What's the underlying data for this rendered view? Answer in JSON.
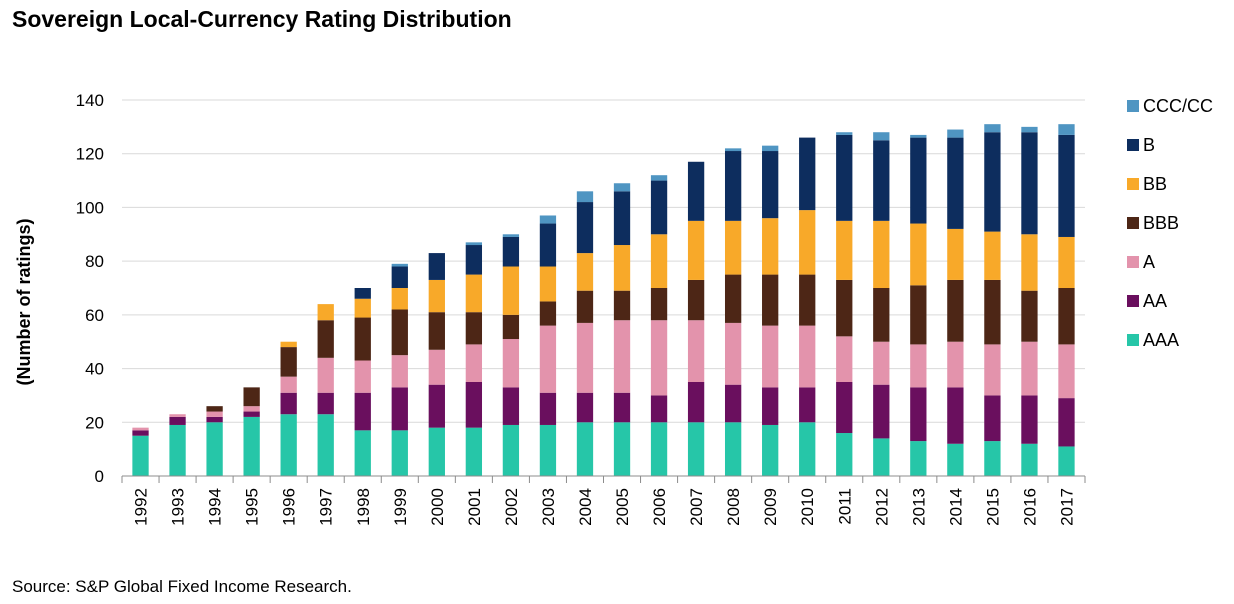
{
  "title": "Sovereign Local-Currency Rating Distribution",
  "source": "Source: S&P Global Fixed Income Research.",
  "chart_data": {
    "type": "bar",
    "stacked": true,
    "categories": [
      "1992",
      "1993",
      "1994",
      "1995",
      "1996",
      "1997",
      "1998",
      "1999",
      "2000",
      "2001",
      "2002",
      "2003",
      "2004",
      "2005",
      "2006",
      "2007",
      "2008",
      "2009",
      "2010",
      "2011",
      "2012",
      "2013",
      "2014",
      "2015",
      "2016",
      "2017"
    ],
    "ylabel": "(Number of ratings)",
    "ylim": [
      0,
      140
    ],
    "yticks": [
      0,
      20,
      40,
      60,
      80,
      100,
      120,
      140
    ],
    "grid": true,
    "legend_position": "right",
    "series": [
      {
        "name": "AAA",
        "color": "#26c6a8",
        "values": [
          15,
          19,
          20,
          22,
          23,
          23,
          17,
          17,
          18,
          18,
          19,
          19,
          20,
          20,
          20,
          20,
          20,
          19,
          20,
          16,
          14,
          13,
          12,
          13,
          12,
          11
        ]
      },
      {
        "name": "AA",
        "color": "#6a0f5e",
        "values": [
          2,
          3,
          2,
          2,
          8,
          8,
          14,
          16,
          16,
          17,
          14,
          12,
          11,
          11,
          10,
          15,
          14,
          14,
          13,
          19,
          20,
          20,
          21,
          17,
          18,
          18
        ]
      },
      {
        "name": "A",
        "color": "#e393ac",
        "values": [
          1,
          1,
          2,
          2,
          6,
          13,
          12,
          12,
          13,
          14,
          18,
          25,
          26,
          27,
          28,
          23,
          23,
          23,
          23,
          17,
          16,
          16,
          17,
          19,
          20,
          20
        ]
      },
      {
        "name": "BBB",
        "color": "#4d2616",
        "values": [
          0,
          0,
          2,
          7,
          11,
          14,
          16,
          17,
          14,
          12,
          9,
          9,
          12,
          11,
          12,
          15,
          18,
          19,
          19,
          21,
          20,
          22,
          23,
          24,
          19,
          21
        ]
      },
      {
        "name": "BB",
        "color": "#f8a929",
        "values": [
          0,
          0,
          0,
          0,
          2,
          6,
          7,
          8,
          12,
          14,
          18,
          13,
          14,
          17,
          20,
          22,
          20,
          21,
          24,
          22,
          25,
          23,
          19,
          18,
          21,
          19
        ]
      },
      {
        "name": "B",
        "color": "#0d2d5e",
        "values": [
          0,
          0,
          0,
          0,
          0,
          0,
          4,
          8,
          10,
          11,
          11,
          16,
          19,
          20,
          20,
          22,
          26,
          25,
          27,
          32,
          30,
          32,
          34,
          37,
          38,
          38
        ]
      },
      {
        "name": "CCC/CC",
        "color": "#4f95c2",
        "values": [
          0,
          0,
          0,
          0,
          0,
          0,
          0,
          1,
          0,
          1,
          1,
          3,
          4,
          3,
          2,
          0,
          1,
          2,
          0,
          1,
          3,
          1,
          3,
          3,
          2,
          4
        ]
      }
    ]
  }
}
